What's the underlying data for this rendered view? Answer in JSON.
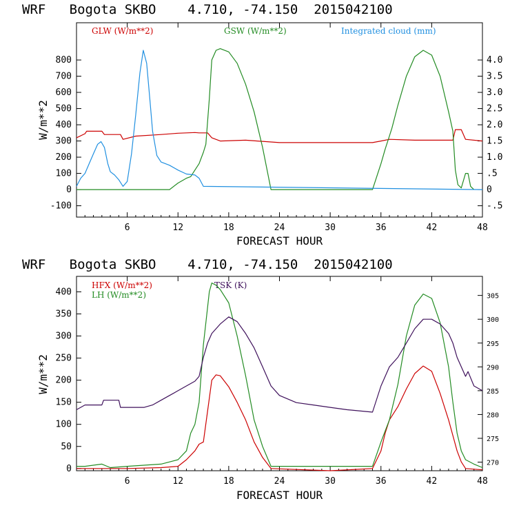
{
  "colors": {
    "red": "#cc0000",
    "green": "#228b22",
    "blue": "#1f8fe0",
    "purple": "#3d0f5a",
    "black": "#000000"
  },
  "chart_data": [
    {
      "type": "line",
      "title": "WRF   Bogota SKBO    4.710, -74.150  2015042100",
      "xlabel": "FORECAST HOUR",
      "ylabel": "W/m**2",
      "xlim": [
        0,
        48
      ],
      "ylim": [
        -170,
        1030
      ],
      "y2lim": [
        -0.85,
        5.15
      ],
      "x_ticks": [
        "6",
        "12",
        "18",
        "24",
        "30",
        "36",
        "42",
        "48"
      ],
      "y_ticks": [
        "-100",
        "0",
        "100",
        "200",
        "300",
        "400",
        "500",
        "600",
        "700",
        "800"
      ],
      "y2_ticks": [
        "-.5",
        "0",
        ".5",
        "1.0",
        "1.5",
        "2.0",
        "2.5",
        "3.0",
        "3.5",
        "4.0"
      ],
      "series": [
        {
          "name": "GLW (W/m**2)",
          "axis": "left",
          "color": "red",
          "x": [
            0,
            1,
            1.2,
            3,
            3.3,
            5.2,
            5.5,
            7,
            10,
            12,
            14,
            14.5,
            15.5,
            16,
            17,
            20,
            24,
            30,
            35,
            36,
            37,
            40,
            44.5,
            44.8,
            45.5,
            46,
            48
          ],
          "y": [
            320,
            345,
            360,
            360,
            340,
            340,
            310,
            330,
            340,
            348,
            352,
            350,
            350,
            320,
            300,
            305,
            290,
            290,
            290,
            300,
            310,
            305,
            305,
            370,
            370,
            310,
            300
          ]
        },
        {
          "name": "GSW (W/m**2)",
          "axis": "left",
          "color": "green",
          "x": [
            0,
            11,
            12,
            13,
            13.5,
            14,
            14.5,
            15,
            15.3,
            15.7,
            16,
            16.5,
            17,
            18,
            19,
            20,
            21,
            22,
            23,
            35,
            36,
            36.5,
            37,
            37.3,
            38,
            39,
            40,
            41,
            42,
            43,
            44,
            44.5,
            44.8,
            45.1,
            45.5,
            46,
            46.3,
            46.6,
            47
          ],
          "y": [
            0,
            0,
            40,
            70,
            80,
            120,
            160,
            230,
            280,
            560,
            800,
            860,
            870,
            850,
            780,
            650,
            480,
            260,
            0,
            0,
            160,
            250,
            330,
            380,
            520,
            700,
            820,
            860,
            830,
            700,
            480,
            360,
            120,
            30,
            10,
            100,
            100,
            20,
            0
          ]
        },
        {
          "name": "Integrated cloud (mm)",
          "axis": "right",
          "color": "blue",
          "x": [
            0,
            0.5,
            1,
            1.5,
            2,
            2.5,
            2.9,
            3.3,
            3.7,
            4,
            4.5,
            5,
            5.5,
            6,
            6.5,
            7,
            7.5,
            7.9,
            8.3,
            8.7,
            9,
            9.5,
            10,
            11,
            12,
            13,
            14,
            14.5,
            15,
            48
          ],
          "y": [
            0.1,
            0.35,
            0.5,
            0.8,
            1.1,
            1.4,
            1.48,
            1.3,
            0.8,
            0.55,
            0.45,
            0.3,
            0.1,
            0.25,
            1.1,
            2.3,
            3.6,
            4.3,
            3.9,
            2.7,
            1.8,
            1.05,
            0.85,
            0.75,
            0.6,
            0.48,
            0.45,
            0.35,
            0.1,
            0
          ]
        }
      ]
    },
    {
      "type": "line",
      "title": "WRF   Bogota SKBO    4.710, -74.150  2015042100",
      "xlabel": "FORECAST HOUR",
      "ylabel": "W/m**2",
      "xlim": [
        0,
        48
      ],
      "ylim": [
        -5,
        435
      ],
      "y2lim": [
        268.2,
        309
      ],
      "x_ticks": [
        "6",
        "12",
        "18",
        "24",
        "30",
        "36",
        "42",
        "48"
      ],
      "y_ticks": [
        "0",
        "50",
        "100",
        "150",
        "200",
        "250",
        "300",
        "350",
        "400"
      ],
      "y2_ticks": [
        "270",
        "275",
        "280",
        "285",
        "290",
        "295",
        "300",
        "305"
      ],
      "series": [
        {
          "name": "HFX (W/m**2)",
          "axis": "left",
          "color": "red",
          "x": [
            0,
            6,
            10,
            12,
            13,
            14,
            14.5,
            15,
            15.5,
            16,
            16.5,
            17,
            18,
            19,
            20,
            21,
            22,
            23,
            30,
            35,
            36,
            36.5,
            37,
            38,
            39,
            40,
            41,
            42,
            43,
            44,
            45,
            45.5,
            46,
            48
          ],
          "y": [
            0,
            0,
            2,
            5,
            20,
            40,
            55,
            60,
            130,
            200,
            212,
            210,
            185,
            150,
            110,
            60,
            25,
            0,
            -5,
            0,
            40,
            80,
            110,
            140,
            180,
            215,
            232,
            220,
            170,
            110,
            40,
            15,
            0,
            -3
          ]
        },
        {
          "name": "LH  (W/m**2)",
          "axis": "left",
          "color": "green",
          "x": [
            0,
            1,
            3,
            4,
            6,
            10,
            12,
            13,
            13.5,
            14,
            14.5,
            15,
            15.3,
            15.7,
            16,
            16.5,
            17,
            18,
            19,
            20,
            21,
            22,
            23,
            30,
            35,
            36,
            37,
            38,
            39,
            40,
            41,
            42,
            43,
            44,
            44.5,
            45,
            45.5,
            46,
            47,
            48
          ],
          "y": [
            5,
            5,
            10,
            2,
            5,
            10,
            20,
            40,
            80,
            100,
            150,
            280,
            330,
            400,
            420,
            415,
            405,
            375,
            300,
            210,
            110,
            50,
            5,
            5,
            5,
            60,
            110,
            190,
            300,
            370,
            395,
            385,
            330,
            230,
            150,
            80,
            40,
            20,
            10,
            2
          ]
        },
        {
          "name": "TSK (K)",
          "axis": "right",
          "color": "purple",
          "x": [
            0,
            1,
            3,
            3.2,
            4,
            5,
            5.2,
            8,
            9,
            10,
            11,
            12,
            13,
            14,
            14.5,
            15,
            15.5,
            16,
            17,
            18,
            19,
            20,
            21,
            22,
            23,
            24,
            26,
            28,
            30,
            32,
            35,
            36,
            36.5,
            37,
            37.5,
            38,
            39,
            40,
            41,
            42,
            43,
            44,
            44.5,
            45,
            46,
            46.3,
            47,
            48
          ],
          "y": [
            281,
            282,
            282,
            283,
            283,
            283,
            281.5,
            281.5,
            282,
            283,
            284,
            285,
            286,
            287,
            288,
            292,
            295,
            297,
            299,
            300.5,
            299.5,
            297,
            294,
            290,
            286,
            284,
            282.5,
            282,
            281.5,
            281,
            280.5,
            286,
            288,
            290,
            291,
            292,
            295,
            298,
            300,
            300,
            299,
            297,
            295,
            292,
            288,
            289,
            286,
            285
          ]
        }
      ]
    }
  ]
}
